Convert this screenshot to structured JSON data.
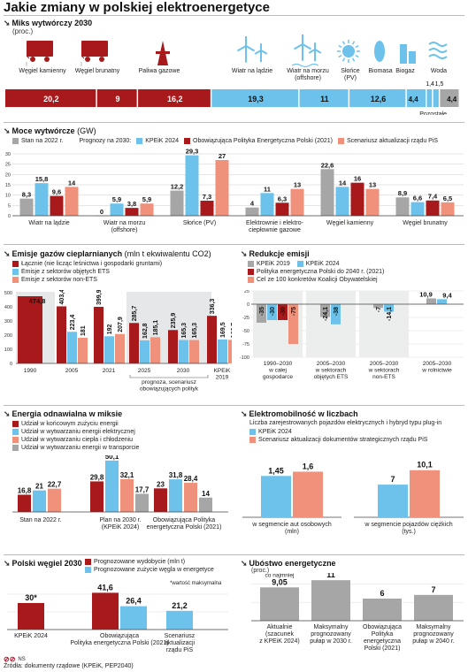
{
  "title": "Jakie zmiany w polskiej elektroenergetyce",
  "colors": {
    "blue": "#6cc2ea",
    "darkred": "#a8191c",
    "salmon": "#f0917c",
    "gray": "#a6a6a6",
    "lightgray": "#d9dadb",
    "gaspink": "#f7b6a6"
  },
  "s1": {
    "title": "Miks wytwórczy 2030",
    "unit": "(proc.)",
    "icons": [
      "coal-wagon-icon",
      "coal-wagon-icon",
      "gas-rig-icon",
      "wind-turbine-icon",
      "offshore-wind-icon",
      "sun-icon",
      "biomass-icon",
      "biogas-icon",
      "water-wave-icon"
    ],
    "labels": [
      "Węgiel kamienny",
      "Węgiel brunatny",
      "Paliwa gazowe",
      "Wiatr na lądzie",
      "Wiatr na morzu (offshore)",
      "Słońce (PV)",
      "Biomasa",
      "Biogaz",
      "Woda",
      "Pozostałe"
    ],
    "values": [
      "20,2",
      "9",
      "16,2",
      "19,3",
      "11",
      "12,6",
      "4,4",
      "1,4",
      "1,5",
      "4,4"
    ]
  },
  "s2": {
    "title": "Moce wytwórcze",
    "unit": "(GW)",
    "legend_base": "Stan na 2022 r.",
    "legend_prefix": "Prognozy na 2030:",
    "legend": [
      "KPEiK 2024",
      "Obowiązująca Polityka Energetyczna Polski (2021)",
      "Scenariusz aktualizacji rządu PiS"
    ]
  },
  "s3": {
    "title": "Emisje gazów cieplarnianych",
    "unit": "(mln t ekwiwalentu CO2)",
    "legend": [
      "Łącznie (nie licząc leśnictwa i gospodarki gruntami)",
      "Emisje z sektorów objętych ETS",
      "Emisje z sektorów non-ETS"
    ],
    "group_label": "prognoza, scenariusz obowiązujących polityk",
    "kpeik_label": "KPEiK 2019"
  },
  "s4": {
    "title": "Redukcje emisji",
    "legend": [
      "KPEiK 2019",
      "KPEiK 2024",
      "Polityka energetyczna Polski do 2040 r. (2021)",
      "Cel ze 100 konkretów Koalicji Obywatelskiej"
    ]
  },
  "s5": {
    "title": "Energia odnawialna w miksie",
    "legend": [
      "Udział w końcowym zużyciu energii",
      "Udział w wytwarzaniu energii elektrycznej",
      "Udział w wytwarzaniu ciepła i chłodzeniu",
      "Udział w wytwarzaniu energii w transporcie"
    ]
  },
  "s6": {
    "title": "Elektromobilność w liczbach",
    "subtitle": "Liczba zarejestrowanych pojazdów elektrycznych i hybryd typu plug-in",
    "legend": [
      "KPEiK 2024",
      "Scenariusz aktualizacji dokumentów strategicznych rządu PiS"
    ]
  },
  "s7": {
    "title": "Polski węgiel 2030",
    "legend": [
      "Prognozowane wydobycie (mln t)",
      "Prognozowane zużycie węgla w energetyce"
    ],
    "note": "*wartość maksymalna"
  },
  "s8": {
    "title": "Ubóstwo energetyczne",
    "unit": "(proc.)",
    "annotation": "co najmniej"
  },
  "footer": {
    "brand": "NS",
    "source": "Źródła: dokumenty rządowe (KPEiK, PEP2040)"
  },
  "chart_data": [
    {
      "id": "moce",
      "type": "bar",
      "ylim": [
        0,
        30
      ],
      "yticks": [
        0,
        5,
        10,
        15,
        20,
        25,
        30
      ],
      "categories": [
        "Wiatr na lądzie",
        "Wiatr na morzu (offshore)",
        "Słońce (PV)",
        "Elektrownie i elektro-ciepłownie gazowe",
        "Węgiel kamienny",
        "Węgiel brunatny"
      ],
      "series": [
        {
          "name": "Stan na 2022 r.",
          "color": "#a6a6a6",
          "values": [
            8.3,
            0,
            12.2,
            4,
            22.6,
            8.9
          ],
          "labels": [
            "8,3",
            "0",
            "12,2",
            "4",
            "22,6",
            "8,9"
          ]
        },
        {
          "name": "KPEiK 2024",
          "color": "#6cc2ea",
          "values": [
            15.8,
            5.9,
            29.3,
            11,
            14,
            6.6
          ],
          "labels": [
            "15,8",
            "5,9",
            "29,3",
            "11",
            "14",
            "6,6"
          ]
        },
        {
          "name": "Obowiązująca Polityka Energetyczna Polski (2021)",
          "color": "#a8191c",
          "values": [
            9.6,
            3.8,
            7.3,
            6.3,
            16,
            7.4
          ],
          "labels": [
            "9,6",
            "3,8",
            "7,3",
            "6,3",
            "16",
            "7,4"
          ]
        },
        {
          "name": "Scenariusz aktualizacji rządu PiS",
          "color": "#f0917c",
          "values": [
            14,
            5.9,
            27,
            13,
            13,
            6.5
          ],
          "labels": [
            "14",
            "5,9",
            "27",
            "13",
            "13",
            "6,5"
          ]
        }
      ]
    },
    {
      "id": "emisje",
      "type": "bar",
      "ylim": [
        0,
        500
      ],
      "yticks": [
        0,
        100,
        200,
        300,
        400,
        500
      ],
      "categories": [
        "1990",
        "2005",
        "2021",
        "2025",
        "2030",
        "KPEiK 2019"
      ],
      "series": [
        {
          "name": "Łącznie",
          "color": "#a8191c",
          "values": [
            474.8,
            403.4,
            399.9,
            285.7,
            235.9,
            336.3
          ],
          "labels": [
            "474,8",
            "403,4",
            "399,9",
            "285,7",
            "235,9",
            "336,3"
          ]
        },
        {
          "name": "ETS",
          "color": "#6cc2ea",
          "values": [
            null,
            223.4,
            192,
            162.8,
            165.3,
            169.5
          ],
          "labels": [
            "",
            "223,4",
            "192",
            "162,8",
            "165,3",
            "169,5"
          ]
        },
        {
          "name": "non-ETS",
          "color": "#f0917c",
          "values": [
            null,
            181,
            207.9,
            185.1,
            165.3,
            166.7
          ],
          "labels": [
            "",
            "181",
            "207,9",
            "185,1",
            "165,3",
            "166,7"
          ]
        }
      ]
    },
    {
      "id": "redukcje",
      "type": "bar",
      "ylim": [
        -100,
        25
      ],
      "yticks": [
        -100,
        -75,
        -50,
        -25,
        0,
        25
      ],
      "categories": [
        "1990–2030 w całej gospodarce",
        "2005–2030 w sektorach objętych ETS",
        "2005–2030 w sektorach non-ETS",
        "2005–2030 w rolnictwie"
      ],
      "series": [
        {
          "name": "KPEiK 2019",
          "color": "#a6a6a6",
          "values": [
            -35,
            -24.1,
            -7,
            10.9
          ],
          "labels": [
            "-35",
            "-24,1",
            "-7",
            "10,9"
          ]
        },
        {
          "name": "KPEiK 2024",
          "color": "#6cc2ea",
          "values": [
            -30,
            -38,
            -14.1,
            9.4
          ],
          "labels": [
            "-30",
            "-38",
            "-14,1",
            "9,4"
          ]
        },
        {
          "name": "Polityka energetyczna Polski do 2040 r. (2021)",
          "color": "#a8191c",
          "values": [
            -30,
            null,
            null,
            null
          ],
          "labels": [
            "-30",
            "",
            "",
            ""
          ]
        },
        {
          "name": "Cel ze 100 konkretów Koalicji Obywatelskiej",
          "color": "#f0917c",
          "values": [
            -75,
            null,
            null,
            null
          ],
          "labels": [
            "-75",
            "",
            "",
            ""
          ]
        }
      ]
    },
    {
      "id": "oze",
      "type": "bar",
      "ylim": [
        0,
        50
      ],
      "categories": [
        "Stan na 2022 r.",
        "Plan na 2030 r. (KPEiK 2024)",
        "Obowiązująca Polityka energetyczna Polski (2021)"
      ],
      "series": [
        {
          "name": "Końcowe zużycie",
          "color": "#a8191c",
          "values": [
            16.8,
            29.8,
            23
          ],
          "labels": [
            "16,8",
            "29,8",
            "23"
          ]
        },
        {
          "name": "Energia elektryczna",
          "color": "#6cc2ea",
          "values": [
            21,
            50.1,
            31.8
          ],
          "labels": [
            "21",
            "50,1",
            "31,8"
          ]
        },
        {
          "name": "Ciepło i chłodzenie",
          "color": "#f0917c",
          "values": [
            22.7,
            32.1,
            28.4
          ],
          "labels": [
            "22,7",
            "32,1",
            "28,4"
          ]
        },
        {
          "name": "Transport",
          "color": "#a6a6a6",
          "values": [
            null,
            17.7,
            14
          ],
          "labels": [
            "",
            "17,7",
            "14"
          ]
        }
      ]
    },
    {
      "id": "ev_osobowe",
      "type": "bar",
      "ylim": [
        0,
        1.8
      ],
      "categories": [
        "w segmencie aut osobowych (mln)"
      ],
      "series": [
        {
          "name": "KPEiK 2024",
          "color": "#6cc2ea",
          "values": [
            1.45
          ],
          "labels": [
            "1,45"
          ]
        },
        {
          "name": "Scenariusz PiS",
          "color": "#f0917c",
          "values": [
            1.6
          ],
          "labels": [
            "1,6"
          ]
        }
      ]
    },
    {
      "id": "ev_ciezkie",
      "type": "bar",
      "ylim": [
        0,
        11
      ],
      "categories": [
        "w segmencie pojazdów ciężkich (tys.)"
      ],
      "series": [
        {
          "name": "KPEiK 2024",
          "color": "#6cc2ea",
          "values": [
            7
          ],
          "labels": [
            "7"
          ]
        },
        {
          "name": "Scenariusz PiS",
          "color": "#f0917c",
          "values": [
            10.1
          ],
          "labels": [
            "10,1"
          ]
        }
      ]
    },
    {
      "id": "wegiel",
      "type": "bar",
      "ylim": [
        0,
        50
      ],
      "categories": [
        "KPEiK 2024",
        "Obowiązująca Polityka energetyczna Polski (2021)",
        "Scenariusz aktualizacji rządu PiS"
      ],
      "series": [
        {
          "name": "Wydobycie",
          "color": "#a8191c",
          "values": [
            30,
            41.6,
            null
          ],
          "labels": [
            "30*",
            "41,6",
            ""
          ]
        },
        {
          "name": "Zużycie",
          "color": "#6cc2ea",
          "values": [
            null,
            26.4,
            21.2
          ],
          "labels": [
            "",
            "26,4",
            "21,2"
          ]
        }
      ]
    },
    {
      "id": "ubostwo",
      "type": "bar",
      "ylim": [
        0,
        12
      ],
      "categories": [
        "Aktualnie (szacunek z KPEiK 2024)",
        "Maksymalny prognozowany pułap w 2030 r.",
        "Obowiązująca Polityka energetyczna Polski (2021)",
        "Maksymalny prognozowany pułap w 2040 r."
      ],
      "series": [
        {
          "name": "Ubóstwo",
          "color": "#a6a6a6",
          "values": [
            9.05,
            11,
            6,
            7
          ],
          "labels": [
            "9,05",
            "11",
            "6",
            "7"
          ]
        }
      ]
    }
  ]
}
